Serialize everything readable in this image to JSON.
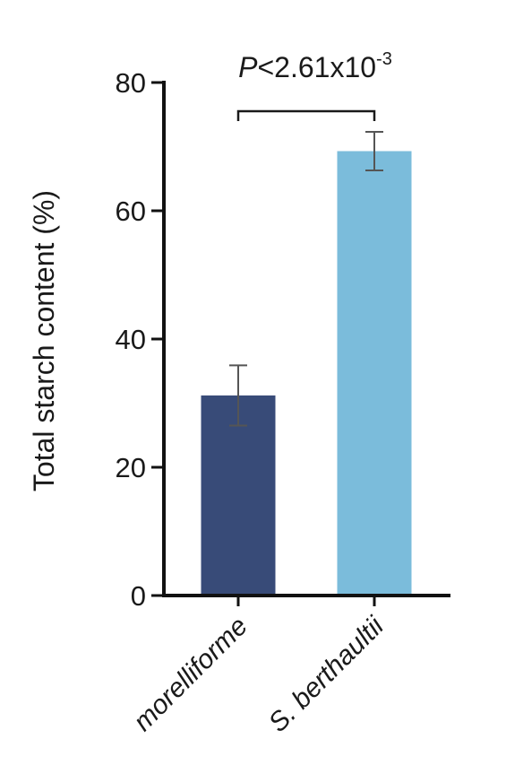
{
  "chart_data": {
    "type": "bar",
    "categories": [
      "morelliforme",
      "S. berthaultii"
    ],
    "values": [
      31.2,
      69.3
    ],
    "errors": [
      4.7,
      3.0
    ],
    "colors": [
      "#384b78",
      "#7bbcdb"
    ],
    "ylabel": "Total starch content (%)",
    "xlabel": "",
    "ylim": [
      0,
      80
    ],
    "yticks": [
      0,
      20,
      40,
      60,
      80
    ],
    "significance": {
      "p_symbol": "P",
      "text": "<2.61x10",
      "exponent": "-3"
    }
  }
}
